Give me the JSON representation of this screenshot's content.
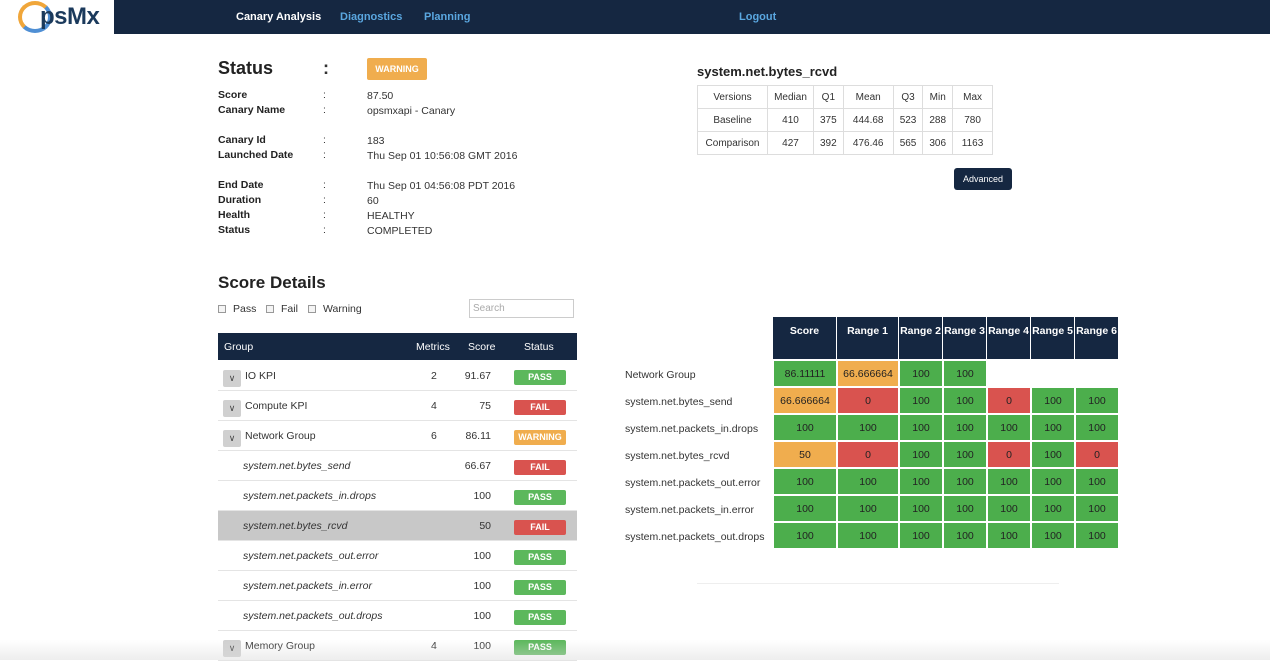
{
  "app": {
    "logo_text": "psMx"
  },
  "nav": {
    "canary_analysis": "Canary Analysis",
    "diagnostics": "Diagnostics",
    "planning": "Planning",
    "logout": "Logout"
  },
  "status": {
    "title": "Status",
    "colon": ":",
    "badge": "WARNING",
    "fields": [
      {
        "label": "Score",
        "value": "87.50"
      },
      {
        "label": "Canary Name",
        "value": "opsmxapi - Canary"
      },
      {
        "label": "Canary Id",
        "value": "183"
      },
      {
        "label": "Launched Date",
        "value": "Thu Sep 01 10:56:08 GMT 2016"
      },
      {
        "label": "End Date",
        "value": "Thu Sep 01 04:56:08 PDT 2016"
      },
      {
        "label": "Duration",
        "value": "60"
      },
      {
        "label": "Health",
        "value": "HEALTHY"
      },
      {
        "label": "Status",
        "value": "COMPLETED"
      }
    ]
  },
  "metric_stats": {
    "title": "system.net.bytes_rcvd",
    "headers": [
      "Versions",
      "Median",
      "Q1",
      "Mean",
      "Q3",
      "Min",
      "Max"
    ],
    "rows": [
      [
        "Baseline",
        "410",
        "375",
        "444.68",
        "523",
        "288",
        "780"
      ],
      [
        "Comparison",
        "427",
        "392",
        "476.46",
        "565",
        "306",
        "1163"
      ]
    ],
    "advanced_button": "Advanced"
  },
  "score_details": {
    "title": "Score Details",
    "filters": {
      "pass": "Pass",
      "fail": "Fail",
      "warning": "Warning"
    },
    "search_placeholder": "Search",
    "columns": {
      "group": "Group",
      "metrics": "Metrics",
      "score": "Score",
      "status": "Status"
    },
    "rows": [
      {
        "name": "IO KPI",
        "metrics": "2",
        "score": "91.67",
        "status": "PASS",
        "type": "group"
      },
      {
        "name": "Compute KPI",
        "metrics": "4",
        "score": "75",
        "status": "FAIL",
        "type": "group"
      },
      {
        "name": "Network Group",
        "metrics": "6",
        "score": "86.11",
        "status": "WARNING",
        "type": "group"
      },
      {
        "name": "system.net.bytes_send",
        "metrics": "",
        "score": "66.67",
        "status": "FAIL",
        "type": "metric"
      },
      {
        "name": "system.net.packets_in.drops",
        "metrics": "",
        "score": "100",
        "status": "PASS",
        "type": "metric"
      },
      {
        "name": "system.net.bytes_rcvd",
        "metrics": "",
        "score": "50",
        "status": "FAIL",
        "type": "metric",
        "selected": true
      },
      {
        "name": "system.net.packets_out.error",
        "metrics": "",
        "score": "100",
        "status": "PASS",
        "type": "metric"
      },
      {
        "name": "system.net.packets_in.error",
        "metrics": "",
        "score": "100",
        "status": "PASS",
        "type": "metric"
      },
      {
        "name": "system.net.packets_out.drops",
        "metrics": "",
        "score": "100",
        "status": "PASS",
        "type": "metric"
      },
      {
        "name": "Memory Group",
        "metrics": "4",
        "score": "100",
        "status": "PASS",
        "type": "group"
      }
    ]
  },
  "heatmap": {
    "headers": [
      "Score",
      "Range 1",
      "Range 2",
      "Range 3",
      "Range 4",
      "Range 5",
      "Range 6"
    ],
    "rows": [
      {
        "label": "Network Group",
        "cells": [
          "86.11111",
          "66.666664",
          "100",
          "100"
        ],
        "colors": [
          "green",
          "orange",
          "green",
          "green"
        ]
      },
      {
        "label": "system.net.bytes_send",
        "cells": [
          "66.666664",
          "0",
          "100",
          "100",
          "0",
          "100",
          "100"
        ],
        "colors": [
          "orange",
          "red",
          "green",
          "green",
          "red",
          "green",
          "green"
        ]
      },
      {
        "label": "system.net.packets_in.drops",
        "cells": [
          "100",
          "100",
          "100",
          "100",
          "100",
          "100",
          "100"
        ],
        "colors": [
          "green",
          "green",
          "green",
          "green",
          "green",
          "green",
          "green"
        ]
      },
      {
        "label": "system.net.bytes_rcvd",
        "cells": [
          "50",
          "0",
          "100",
          "100",
          "0",
          "100",
          "0"
        ],
        "colors": [
          "orange",
          "red",
          "green",
          "green",
          "red",
          "green",
          "red"
        ]
      },
      {
        "label": "system.net.packets_out.error",
        "cells": [
          "100",
          "100",
          "100",
          "100",
          "100",
          "100",
          "100"
        ],
        "colors": [
          "green",
          "green",
          "green",
          "green",
          "green",
          "green",
          "green"
        ]
      },
      {
        "label": "system.net.packets_in.error",
        "cells": [
          "100",
          "100",
          "100",
          "100",
          "100",
          "100",
          "100"
        ],
        "colors": [
          "green",
          "green",
          "green",
          "green",
          "green",
          "green",
          "green"
        ]
      },
      {
        "label": "system.net.packets_out.drops",
        "cells": [
          "100",
          "100",
          "100",
          "100",
          "100",
          "100",
          "100"
        ],
        "colors": [
          "green",
          "green",
          "green",
          "green",
          "green",
          "green",
          "green"
        ]
      }
    ]
  },
  "colors": {
    "navy": "#152741",
    "pass": "#5cb85c",
    "fail": "#d9534f",
    "warning": "#f0ad4e",
    "link": "#5aa7e0"
  }
}
